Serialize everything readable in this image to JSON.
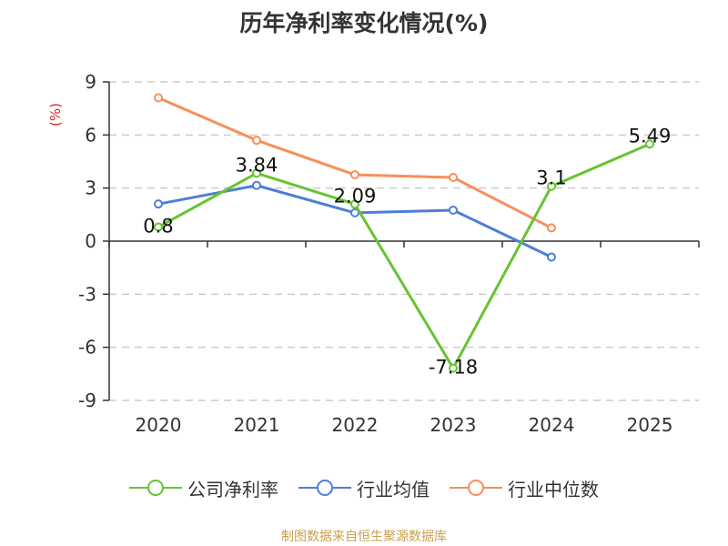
{
  "title": "历年净利率变化情况(%)",
  "source": "制图数据来自恒生聚源数据库",
  "colors": {
    "company": "#66c431",
    "industry_avg": "#4e7fd6",
    "industry_median": "#f78f5a",
    "unit": "#e02020",
    "axis": "#333333",
    "grid": "#cccccc"
  },
  "chart_data": {
    "type": "line",
    "unit_label": "(%)",
    "categories": [
      "2020",
      "2021",
      "2022",
      "2023",
      "2024",
      "2025"
    ],
    "ylim": [
      -9,
      9
    ],
    "yticks": [
      "9",
      "6",
      "3",
      "0",
      "-3",
      "-6",
      "-9"
    ],
    "grid": true,
    "legend_position": "bottom",
    "series": [
      {
        "key": "company",
        "name": "公司净利率",
        "values": [
          0.8,
          3.84,
          2.09,
          -7.18,
          3.1,
          5.49
        ],
        "labels": [
          "0.8",
          "3.84",
          "2.09",
          "-7.18",
          "3.1",
          "5.49"
        ]
      },
      {
        "key": "industry_avg",
        "name": "行业均值",
        "values": [
          2.1,
          3.15,
          1.6,
          1.75,
          -0.9,
          null
        ]
      },
      {
        "key": "industry_median",
        "name": "行业中位数",
        "values": [
          8.1,
          5.7,
          3.75,
          3.6,
          0.75,
          null
        ]
      }
    ]
  }
}
